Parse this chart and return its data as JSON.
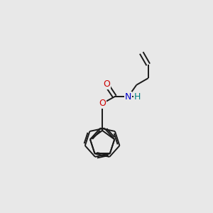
{
  "bg_color": "#e8e8e8",
  "bond_color": "#1a1a1a",
  "O_color": "#cc0000",
  "N_color": "#0000cc",
  "H_color": "#008080",
  "bond_width": 1.4,
  "font_size_atom": 9,
  "fig_size": [
    3.0,
    3.0
  ],
  "dpi": 100,
  "xlim": [
    0,
    10
  ],
  "ylim": [
    0,
    10
  ]
}
